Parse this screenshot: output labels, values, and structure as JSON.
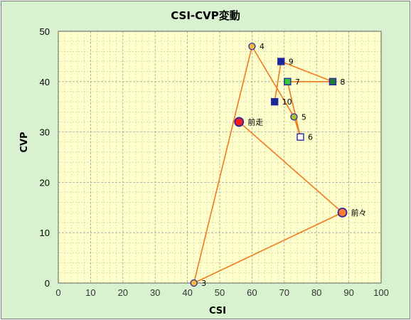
{
  "chart_data": {
    "type": "scatter",
    "title": "CSI-CVP変動",
    "xlabel": "CSI",
    "ylabel": "CVP",
    "xlim": [
      0,
      100
    ],
    "ylim": [
      0,
      50
    ],
    "x_ticks": [
      0,
      10,
      20,
      30,
      40,
      50,
      60,
      70,
      80,
      90,
      100
    ],
    "y_ticks": [
      0,
      10,
      20,
      30,
      40,
      50
    ],
    "x_tick_labels": [
      "0",
      "10",
      "20",
      "30",
      "40",
      "50",
      "60",
      "70",
      "80",
      "90",
      "100"
    ],
    "y_tick_labels": [
      "0",
      "10",
      "20",
      "30",
      "40",
      "50"
    ],
    "grid": true,
    "colors": {
      "plot_bg": "#ffffcc",
      "outer_bg": "#d8f2d0",
      "line": "#f27a1e",
      "grid_major": "#a0a0a0",
      "grid_minor": "#c8c8b0"
    },
    "points": [
      {
        "label": "前走",
        "x": 56,
        "y": 32,
        "marker": "circle-large",
        "fill": "#ff1a1a",
        "stroke": "#2a2aa0"
      },
      {
        "label": "前々",
        "x": 88,
        "y": 14,
        "marker": "circle-large",
        "fill": "#ff7a33",
        "stroke": "#2a2aa0"
      },
      {
        "label": "3",
        "x": 42,
        "y": 0,
        "marker": "circle",
        "fill": "#f4b840",
        "stroke": "#2a2aa0"
      },
      {
        "label": "4",
        "x": 60,
        "y": 47,
        "marker": "circle",
        "fill": "#f4b840",
        "stroke": "#2a2aa0"
      },
      {
        "label": "5",
        "x": 73,
        "y": 33,
        "marker": "circle",
        "fill": "#a8c432",
        "stroke": "#2a2aa0"
      },
      {
        "label": "6",
        "x": 75,
        "y": 29,
        "marker": "square",
        "fill": "#ffffff",
        "stroke": "#2a2aa0"
      },
      {
        "label": "7",
        "x": 71,
        "y": 40,
        "marker": "square",
        "fill": "#33cc33",
        "stroke": "#2a2aa0"
      },
      {
        "label": "8",
        "x": 85,
        "y": 40,
        "marker": "square",
        "fill": "#1f7a3a",
        "stroke": "#2a2aa0"
      },
      {
        "label": "9",
        "x": 69,
        "y": 44,
        "marker": "square",
        "fill": "#14289a",
        "stroke": "#2a2aa0"
      },
      {
        "label": "10",
        "x": 67,
        "y": 36,
        "marker": "square",
        "fill": "#14289a",
        "stroke": "#2a2aa0"
      }
    ],
    "path_order": [
      "10",
      "9",
      "8",
      "7",
      "6",
      "5",
      "4",
      "3",
      "前々",
      "前走"
    ]
  }
}
